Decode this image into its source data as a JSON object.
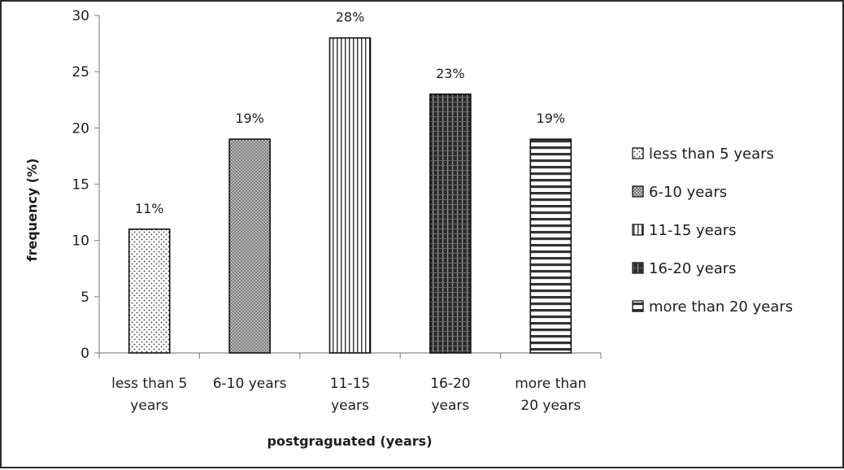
{
  "chart_data": {
    "type": "bar",
    "categories": [
      [
        "less than 5",
        "years"
      ],
      [
        "6-10 years"
      ],
      [
        "11-15",
        "years"
      ],
      [
        "16-20",
        "years"
      ],
      [
        "more than",
        "20 years"
      ]
    ],
    "values": [
      11,
      19,
      28,
      23,
      19
    ],
    "data_labels": [
      "11%",
      "19%",
      "28%",
      "23%",
      "19%"
    ],
    "patterns": [
      "dots",
      "cross-hatch",
      "vertical-lines",
      "dense-grid",
      "horizontal-lines"
    ],
    "xlabel": "postgraguated (years)",
    "ylabel": "frequency (%)",
    "ylim": [
      0,
      30
    ],
    "yticks": [
      0,
      5,
      10,
      15,
      20,
      25,
      30
    ],
    "legend": {
      "position": "right",
      "entries": [
        "less than 5 years",
        "6-10 years",
        "11-15 years",
        "16-20 years",
        "more than 20 years"
      ]
    },
    "grid": false
  }
}
